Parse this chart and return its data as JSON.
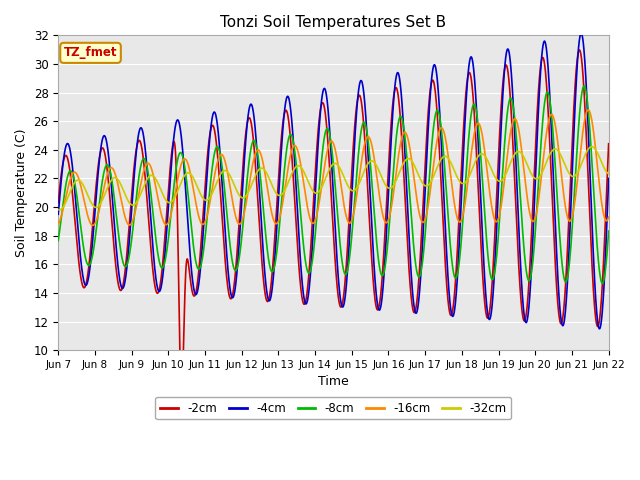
{
  "title": "Tonzi Soil Temperatures Set B",
  "xlabel": "Time",
  "ylabel": "Soil Temperature (C)",
  "ylim": [
    10,
    32
  ],
  "xlim": [
    0,
    15
  ],
  "plot_bg": "#e8e8e8",
  "annotation_label": "TZ_fmet",
  "annotation_bg": "#ffffcc",
  "annotation_border": "#cc8800",
  "legend_entries": [
    "-2cm",
    "-4cm",
    "-8cm",
    "-16cm",
    "-32cm"
  ],
  "line_colors": [
    "#cc0000",
    "#0000cc",
    "#00bb00",
    "#ff8800",
    "#cccc00"
  ],
  "x_tick_labels": [
    "Jun 7",
    "Jun 8",
    "Jun 9",
    "Jun 10",
    "Jun 11",
    "Jun 12",
    "Jun 13",
    "Jun 14",
    "Jun 15",
    "Jun 16",
    "Jun 17",
    "Jun 18",
    "Jun 19",
    "Jun 20",
    "Jun 21",
    "Jun 22"
  ]
}
